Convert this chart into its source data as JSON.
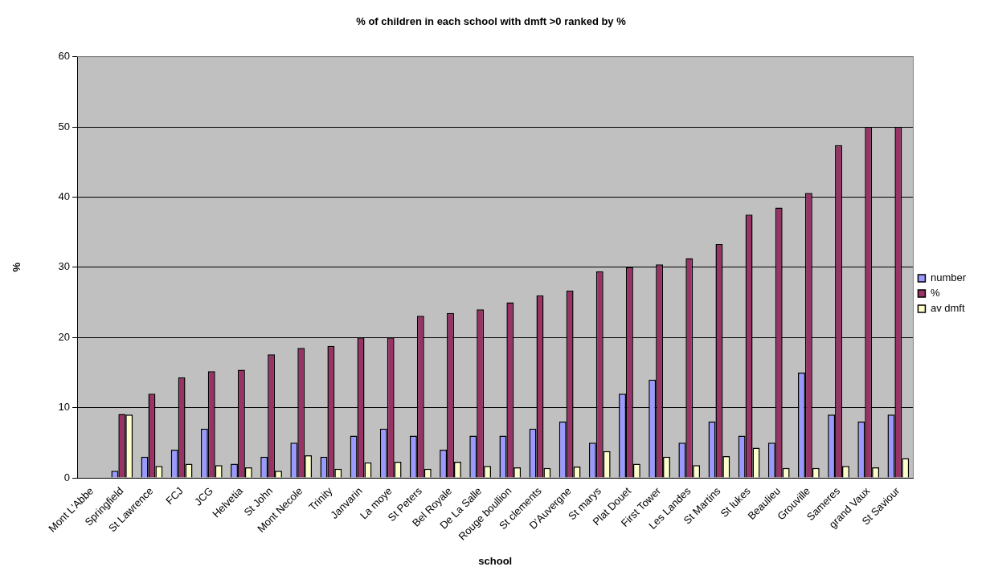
{
  "chart_data": {
    "type": "bar",
    "title": "% of children in each school with dmft >0 ranked by %",
    "xlabel": "school",
    "ylabel": "%",
    "categories": [
      "Mont L'Abbe",
      "Springfield",
      "St Lawrence",
      "FCJ",
      "JCG",
      "Helvetia",
      "St John",
      "Mont Necole",
      "Trinity",
      "Janvarin",
      "La moye",
      "St Peters",
      "Bel Royale",
      "De La Salle",
      "Rouge boullion",
      "St clements",
      "D'Auvergne",
      "St marys",
      "Plat Douet",
      "First Tower",
      "Les Landes",
      "St Martins",
      "St lukes",
      "Beaulieu",
      "Grouville",
      "Sameres",
      "grand Vaux",
      "St Saviour"
    ],
    "series": [
      {
        "name": "number",
        "color": "#9999ff",
        "values": [
          null,
          1,
          3,
          4,
          7,
          2,
          3,
          5,
          3,
          6,
          7,
          6,
          4,
          6,
          6,
          7,
          8,
          5,
          12,
          14,
          5,
          8,
          6,
          5,
          15,
          9,
          8,
          9
        ]
      },
      {
        "name": "%",
        "color": "#993366",
        "values": [
          null,
          9.1,
          12,
          14.3,
          15.2,
          15.4,
          17.6,
          18.5,
          18.8,
          20,
          20,
          23.1,
          23.5,
          24,
          25,
          26,
          26.7,
          29.4,
          30,
          30.4,
          31.3,
          33.3,
          37.5,
          38.5,
          40.6,
          47.4,
          50,
          50
        ]
      },
      {
        "name": "av dmft",
        "color": "#ffffcc",
        "values": [
          null,
          9,
          1.7,
          2,
          1.8,
          1.5,
          1,
          3.2,
          1.3,
          2.2,
          2.3,
          1.3,
          2.3,
          1.7,
          1.5,
          1.4,
          1.6,
          3.8,
          2,
          3,
          1.8,
          3.1,
          4.3,
          1.4,
          1.4,
          1.7,
          1.5,
          2.8
        ]
      }
    ],
    "ylim": [
      0,
      60
    ],
    "yticks": [
      0,
      10,
      20,
      30,
      40,
      50,
      60
    ],
    "grid": "y",
    "legend": "right"
  }
}
